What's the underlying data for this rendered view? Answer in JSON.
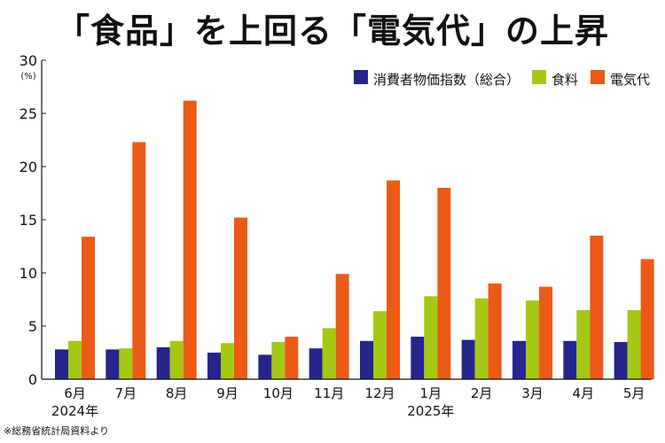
{
  "page_title": "「食品」を上回る「電気代」の上昇",
  "source_note": "※総務省統計局資料より",
  "chart_data": {
    "type": "bar",
    "title": "「食品」を上回る「電気代」の上昇",
    "unit_label": "(%)",
    "ylim": [
      0,
      30
    ],
    "yticks": [
      0,
      5,
      10,
      15,
      20,
      25,
      30
    ],
    "grid": false,
    "legend_position": "top-right",
    "categories": [
      "6月",
      "7月",
      "8月",
      "9月",
      "10月",
      "11月",
      "12月",
      "1月",
      "2月",
      "3月",
      "4月",
      "5月"
    ],
    "year_labels": [
      {
        "label": "2024年",
        "under_category": 0
      },
      {
        "label": "2025年",
        "under_category": 7
      }
    ],
    "series": [
      {
        "name": "消費者物価指数（総合）",
        "color": "#25258c",
        "values": [
          2.8,
          2.8,
          3.0,
          2.5,
          2.3,
          2.9,
          3.6,
          4.0,
          3.7,
          3.6,
          3.6,
          3.5
        ]
      },
      {
        "name": "食料",
        "color": "#a5c814",
        "values": [
          3.6,
          2.9,
          3.6,
          3.4,
          3.5,
          4.8,
          6.4,
          7.8,
          7.6,
          7.4,
          6.5,
          6.5
        ]
      },
      {
        "name": "電気代",
        "color": "#ec5a17",
        "values": [
          13.4,
          22.3,
          26.2,
          15.2,
          4.0,
          9.9,
          18.7,
          18.0,
          9.0,
          8.7,
          13.5,
          11.3
        ]
      }
    ]
  }
}
